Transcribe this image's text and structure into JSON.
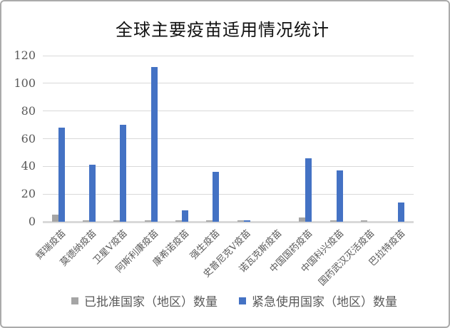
{
  "title": "全球主要疫苗适用情况统计",
  "chart_data": {
    "type": "bar",
    "title": "全球主要疫苗适用情况统计",
    "categories": [
      "辉瑞疫苗",
      "莫德纳疫苗",
      "卫星V疫苗",
      "阿斯利康疫苗",
      "康希诺疫苗",
      "强生疫苗",
      "史普尼克V疫苗",
      "诺瓦克斯疫苗",
      "中国国药疫苗",
      "中国科兴疫苗",
      "国药武汉灭活疫苗",
      "巴拉特疫苗"
    ],
    "series": [
      {
        "name": "已批准国家（地区）数量",
        "color": "#a5a5a5",
        "values": [
          5,
          1,
          1,
          1,
          1,
          1,
          1,
          0,
          3,
          1,
          1,
          0
        ]
      },
      {
        "name": "紧急使用国家（地区）数量",
        "color": "#4472c4",
        "values": [
          68,
          41,
          70,
          112,
          8,
          36,
          1,
          0,
          46,
          37,
          0,
          14
        ]
      }
    ],
    "xlabel": "",
    "ylabel": "",
    "ylim": [
      0,
      120
    ],
    "yticks": [
      0,
      20,
      40,
      60,
      80,
      100,
      120
    ],
    "grid": true,
    "legend_position": "bottom"
  },
  "colors": {
    "grid": "#d9d9d9",
    "axis_text": "#595959",
    "title_text": "#111111",
    "border": "#ababab",
    "background": "#ffffff"
  }
}
